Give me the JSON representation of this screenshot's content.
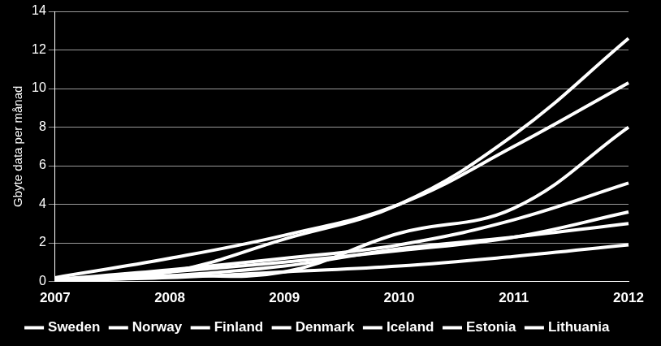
{
  "chart_data": {
    "type": "line",
    "y_label": "Gbyte data per månad",
    "categories": [
      "2007",
      "2008",
      "2009",
      "2010",
      "2011",
      "2012"
    ],
    "series": [
      {
        "name": "Sweden",
        "color": "#ffffff",
        "values": [
          0.1,
          0.5,
          2.2,
          4.0,
          7.6,
          12.6
        ]
      },
      {
        "name": "Norway",
        "color": "#ffffff",
        "values": [
          0.2,
          1.2,
          2.4,
          4.0,
          7.0,
          10.3
        ]
      },
      {
        "name": "Finland",
        "color": "#ffffff",
        "values": [
          0.05,
          0.3,
          0.5,
          2.5,
          3.8,
          8.0
        ]
      },
      {
        "name": "Denmark",
        "color": "#ffffff",
        "values": [
          0.1,
          0.6,
          1.2,
          1.9,
          3.2,
          5.1
        ]
      },
      {
        "name": "Iceland",
        "color": "#ffffff",
        "values": [
          0.1,
          0.5,
          1.0,
          1.6,
          2.3,
          3.6
        ]
      },
      {
        "name": "Estonia",
        "color": "#ffffff",
        "values": [
          0.05,
          0.3,
          0.8,
          1.7,
          2.3,
          3.0
        ]
      },
      {
        "name": "Lithuania",
        "color": "#ffffff",
        "values": [
          0.05,
          0.2,
          0.5,
          0.8,
          1.3,
          1.9
        ]
      }
    ],
    "ylim": [
      0,
      14
    ],
    "yticks": [
      0,
      2,
      4,
      6,
      8,
      10,
      12,
      14
    ],
    "grid": true,
    "legend": "bottom",
    "marker": "none",
    "line_style": "solid"
  }
}
